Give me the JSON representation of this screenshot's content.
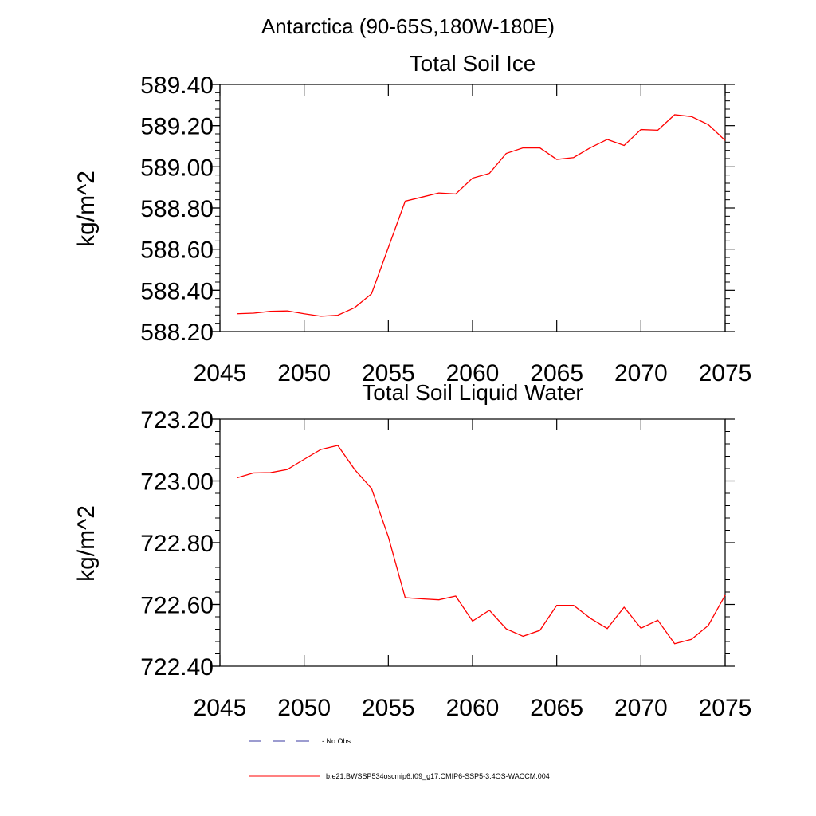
{
  "figure": {
    "main_title": "Antarctica (90-65S,180W-180E)"
  },
  "chart_data": [
    {
      "type": "line",
      "title": "Total Soil Ice",
      "xlabel": "",
      "ylabel": "kg/m^2",
      "xlim": [
        2045,
        2075
      ],
      "ylim": [
        588.2,
        589.4
      ],
      "x_ticks": [
        "2045",
        "2050",
        "2055",
        "2060",
        "2065",
        "2070",
        "2075"
      ],
      "y_ticks": [
        "588.20",
        "588.40",
        "588.60",
        "588.80",
        "589.00",
        "589.20",
        "589.40"
      ],
      "grid": false,
      "series": [
        {
          "name": "b.e21.BWSSP534oscmip6.f09_g17.CMIP6-SSP5-3.4OS-WACCM.004",
          "color": "#ff0000",
          "x": [
            2046,
            2047,
            2048,
            2049,
            2050,
            2051,
            2052,
            2053,
            2054,
            2055,
            2056,
            2057,
            2058,
            2059,
            2060,
            2061,
            2062,
            2063,
            2064,
            2065,
            2066,
            2067,
            2068,
            2069,
            2070,
            2071,
            2072,
            2073,
            2074,
            2075
          ],
          "y": [
            588.286,
            588.289,
            588.298,
            588.3,
            588.286,
            588.274,
            588.279,
            588.316,
            588.383,
            588.608,
            588.833,
            588.853,
            588.873,
            588.868,
            588.945,
            588.968,
            589.065,
            589.092,
            589.092,
            589.036,
            589.045,
            589.093,
            589.133,
            589.104,
            589.181,
            589.178,
            589.253,
            589.244,
            589.205,
            589.128
          ]
        }
      ]
    },
    {
      "type": "line",
      "title": "Total Soil Liquid Water",
      "xlabel": "",
      "ylabel": "kg/m^2",
      "xlim": [
        2045,
        2075
      ],
      "ylim": [
        722.4,
        723.2
      ],
      "x_ticks": [
        "2045",
        "2050",
        "2055",
        "2060",
        "2065",
        "2070",
        "2075"
      ],
      "y_ticks": [
        "722.40",
        "722.60",
        "722.80",
        "723.00",
        "723.20"
      ],
      "grid": false,
      "series": [
        {
          "name": "b.e21.BWSSP534oscmip6.f09_g17.CMIP6-SSP5-3.4OS-WACCM.004",
          "color": "#ff0000",
          "x": [
            2046,
            2047,
            2048,
            2049,
            2050,
            2051,
            2052,
            2053,
            2054,
            2055,
            2056,
            2057,
            2058,
            2059,
            2060,
            2061,
            2062,
            2063,
            2064,
            2065,
            2066,
            2067,
            2068,
            2069,
            2070,
            2071,
            2072,
            2073,
            2074,
            2075
          ],
          "y": [
            723.01,
            723.026,
            723.027,
            723.037,
            723.07,
            723.102,
            723.115,
            723.037,
            722.976,
            722.819,
            722.622,
            722.618,
            722.615,
            722.627,
            722.546,
            722.581,
            722.521,
            722.497,
            722.516,
            722.597,
            722.597,
            722.555,
            722.522,
            722.591,
            722.523,
            722.549,
            722.473,
            722.487,
            722.532,
            722.63
          ]
        }
      ]
    }
  ],
  "legend": {
    "items": [
      {
        "label": "No Obs",
        "style": "dashed",
        "color": "#3a3aa0"
      },
      {
        "label": "b.e21.BWSSP534oscmip6.f09_g17.CMIP6-SSP5-3.4OS-WACCM.004",
        "style": "solid",
        "color": "#ff0000"
      }
    ]
  }
}
